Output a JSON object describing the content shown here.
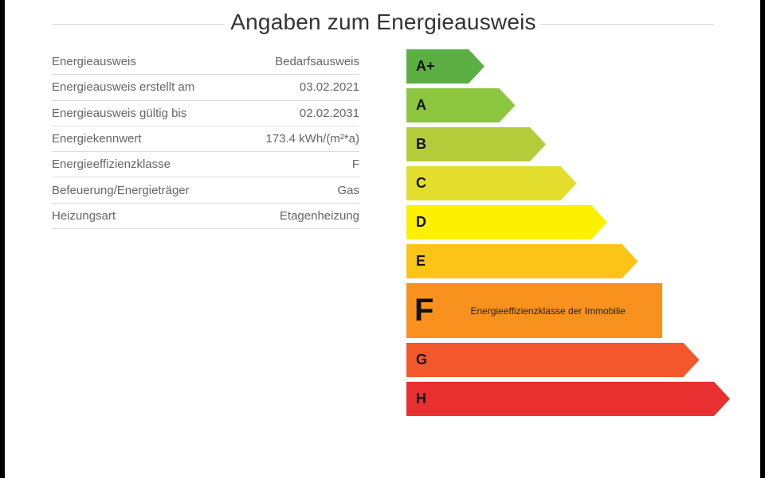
{
  "title": "Angaben zum Energieausweis",
  "rows": [
    {
      "label": "Energieausweis",
      "value": "Bedarfsausweis"
    },
    {
      "label": "Energieausweis erstellt am",
      "value": "03.02.2021"
    },
    {
      "label": "Energieausweis gültig bis",
      "value": "02.02.2031"
    },
    {
      "label": "Energiekennwert",
      "value": "173.4 kWh/(m²*a)"
    },
    {
      "label": "Energieeffizienzklasse",
      "value": "F"
    },
    {
      "label": "Befeuerung/Energieträger",
      "value": "Gas"
    },
    {
      "label": "Heizungsart",
      "value": "Etagenheizung"
    }
  ],
  "scale": {
    "active_class": "F",
    "active_caption": "Energieeffizienzklasse der Immobilie",
    "classes": [
      {
        "label": "A+",
        "color": "#5cb043"
      },
      {
        "label": "A",
        "color": "#8cc63f"
      },
      {
        "label": "B",
        "color": "#b5cc3a"
      },
      {
        "label": "C",
        "color": "#e3de2e"
      },
      {
        "label": "D",
        "color": "#fdf000"
      },
      {
        "label": "E",
        "color": "#fbc416"
      },
      {
        "label": "F",
        "color": "#f8911e"
      },
      {
        "label": "G",
        "color": "#f4572b"
      },
      {
        "label": "H",
        "color": "#e7302f"
      }
    ]
  }
}
